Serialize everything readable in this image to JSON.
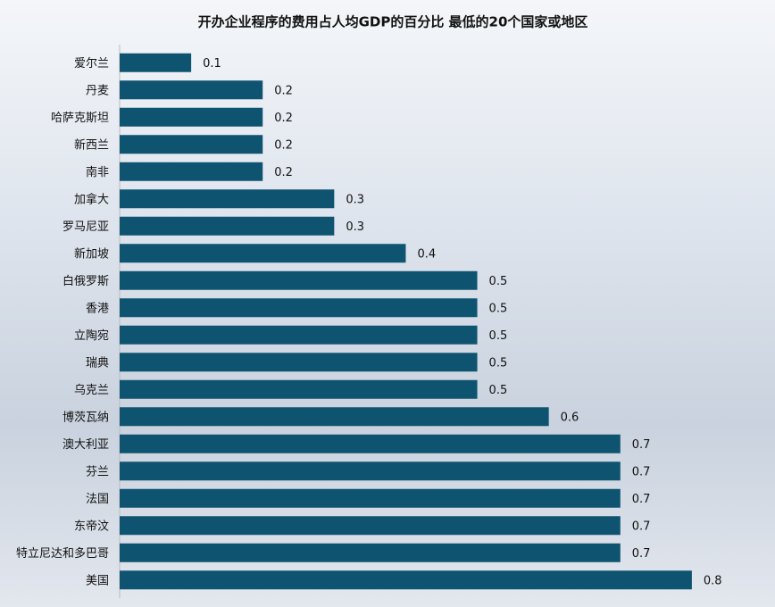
{
  "chart_data": {
    "type": "barh",
    "title": "开办企业程序的费用占人均GDP的百分比 最低的20个国家或地区",
    "categories": [
      "爱尔兰",
      "丹麦",
      "哈萨克斯坦",
      "新西兰",
      "南非",
      "加拿大",
      "罗马尼亚",
      "新加坡",
      "白俄罗斯",
      "香港",
      "立陶宛",
      "瑞典",
      "乌克兰",
      "博茨瓦纳",
      "澳大利亚",
      "芬兰",
      "法国",
      "东帝汶",
      "特立尼达和多巴哥",
      "美国"
    ],
    "values": [
      0.1,
      0.2,
      0.2,
      0.2,
      0.2,
      0.3,
      0.3,
      0.4,
      0.5,
      0.5,
      0.5,
      0.5,
      0.5,
      0.6,
      0.7,
      0.7,
      0.7,
      0.7,
      0.7,
      0.8
    ],
    "color": "#0e5470",
    "xlim": [
      0,
      0.9
    ]
  }
}
